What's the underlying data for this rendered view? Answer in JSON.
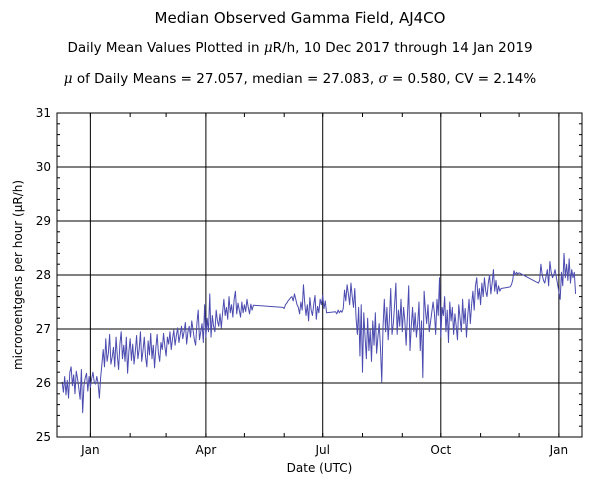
{
  "chart_data": {
    "type": "line",
    "title": "Median Observed Gamma Field, AJ4CO",
    "subtitle": {
      "pre": "Daily Mean Values Plotted in ",
      "mu": "μ",
      "post": "R/h, 10 Dec 2017 through 14 Jan 2019"
    },
    "stats": {
      "mu": "μ",
      "mean_text": " of Daily Means = 27.057,   median = 27.083,   ",
      "sigma": "σ",
      "sd_text": " = 0.580,   CV = 2.14%"
    },
    "xlabel": "Date (UTC)",
    "ylabel": "microroentgens per hour (μR/h)",
    "ylim": [
      25,
      31
    ],
    "xlim": [
      "2017-12-06",
      "2019-01-19"
    ],
    "yticks": [
      25,
      26,
      27,
      28,
      29,
      30,
      31
    ],
    "xticks": [
      {
        "date": "2018-01-01",
        "label": "Jan"
      },
      {
        "date": "2018-04-01",
        "label": "Apr"
      },
      {
        "date": "2018-07-01",
        "label": "Jul"
      },
      {
        "date": "2018-10-01",
        "label": "Oct"
      },
      {
        "date": "2019-01-01",
        "label": "Jan"
      }
    ],
    "grid": true,
    "line_color": "#4b4bb0",
    "segments": [
      {
        "start": "2017-12-10",
        "values": [
          26.02,
          25.83,
          26.12,
          25.78,
          26.05,
          25.72,
          26.2,
          26.3,
          25.95,
          26.15,
          25.8,
          26.22,
          26.08,
          25.9,
          25.7,
          26.25,
          25.45,
          25.95,
          26.1,
          26.18,
          25.85,
          26.12,
          25.92,
          26.08,
          26.2,
          26.02,
          25.98,
          26.12,
          26.0,
          25.72,
          26.1,
          26.35,
          26.62,
          26.3,
          26.82,
          26.4,
          26.55,
          26.9,
          26.35,
          26.48,
          26.66,
          26.3,
          26.85,
          26.5,
          26.25,
          26.72,
          26.95,
          26.45,
          26.7,
          26.4,
          26.85,
          26.18,
          26.58,
          26.82,
          26.42,
          26.72,
          26.35,
          26.58,
          26.88,
          26.45,
          26.62,
          26.95,
          26.4,
          26.6,
          26.85,
          26.48,
          26.3,
          26.78,
          26.52,
          26.92,
          26.45,
          26.7,
          26.28,
          26.65,
          26.9,
          26.55,
          26.4,
          26.75,
          26.62,
          26.92,
          26.68,
          26.5,
          26.85,
          26.72,
          26.95,
          26.62,
          26.82,
          26.98,
          26.7,
          26.88,
          27.02,
          26.75,
          26.9,
          27.05,
          26.82,
          26.95,
          27.12,
          26.72,
          26.95,
          27.05,
          26.85,
          27.15,
          26.98,
          26.8,
          26.7,
          27.1,
          27.35,
          26.8,
          26.95,
          27.1,
          26.75,
          27.45,
          26.85,
          27.2,
          26.95,
          27.65,
          26.85,
          27.25,
          27.05,
          26.95,
          27.35,
          27.15,
          27.05,
          27.28,
          27.02,
          27.3,
          27.55,
          27.25,
          27.4,
          27.18,
          27.6,
          27.3,
          27.45,
          27.22,
          27.55,
          27.7,
          27.28,
          27.48,
          27.35,
          27.22,
          27.5,
          27.3,
          27.45,
          27.32,
          27.55,
          27.4,
          27.28,
          27.46,
          27.35,
          27.44
        ]
      },
      {
        "start": "2018-05-31",
        "values": [
          27.4,
          27.38,
          27.45,
          27.48,
          27.52,
          27.55,
          27.58,
          27.6,
          27.52,
          27.65,
          27.55,
          27.45,
          27.4,
          27.28,
          27.5,
          27.35,
          27.82,
          27.48,
          27.25,
          27.45,
          27.15,
          27.58,
          27.35,
          27.25,
          27.45,
          27.62,
          27.18,
          27.42,
          27.3,
          27.55,
          27.45,
          27.62,
          27.38,
          27.52,
          27.3
        ]
      },
      {
        "start": "2018-07-11",
        "values": [
          27.32,
          27.28,
          27.35,
          27.3,
          27.34,
          27.31,
          27.38,
          27.72,
          27.52,
          27.82,
          27.65,
          27.45,
          27.85,
          27.6,
          27.4,
          27.75,
          27.2,
          26.9,
          27.4,
          26.5,
          27.45,
          26.2,
          27.3,
          26.85,
          26.45,
          27.2,
          26.6,
          26.98,
          26.4,
          27.15,
          26.7,
          27.3,
          26.55,
          26.85,
          27.1,
          26.65,
          26.02,
          27.05,
          27.55,
          26.95,
          27.4,
          26.8,
          27.2,
          27.75,
          26.9,
          27.1,
          27.45,
          27.85,
          26.9,
          27.35,
          27.05,
          27.55,
          26.95,
          27.4,
          27.15,
          26.7,
          27.25,
          27.8,
          26.6,
          27.05,
          27.4,
          26.95,
          27.3,
          26.85,
          27.1,
          27.5,
          26.6,
          27.15,
          26.1,
          27.7,
          27.35,
          27.1,
          27.45,
          26.95
        ]
      },
      {
        "start": "2018-09-25",
        "values": [
          27.5,
          27.3,
          26.9,
          27.55,
          27.25,
          27.95,
          26.85,
          27.4,
          27.25,
          27.6,
          26.95,
          27.35,
          26.75,
          27.5,
          27.15,
          27.4,
          26.9,
          27.28,
          27.05,
          26.8,
          27.45,
          27.2,
          26.95,
          27.55,
          27.1,
          27.38,
          26.85,
          27.25,
          27.55,
          27.1,
          27.45,
          27.7,
          27.35,
          27.8,
          27.95,
          27.55,
          27.75,
          27.45,
          27.85,
          27.6,
          27.95,
          27.7,
          27.6,
          27.85,
          28.0,
          27.65,
          27.85,
          28.1,
          27.7,
          27.9,
          27.65,
          27.8,
          27.7,
          27.75
        ]
      },
      {
        "start": "2018-11-24",
        "values": [
          27.78,
          27.82,
          27.9,
          28.08,
          28.0,
          28.05,
          28.02,
          28.04
        ]
      },
      {
        "start": "2018-12-16",
        "values": [
          27.85,
          27.9,
          28.2,
          28.0,
          27.9,
          27.85
        ]
      },
      {
        "start": "2018-12-23",
        "values": [
          28.1,
          27.8,
          28.25,
          28.05,
          27.95,
          28.0,
          28.1
        ]
      },
      {
        "start": "2019-01-02",
        "values": [
          27.55,
          28.05,
          27.8,
          28.4,
          27.95,
          28.2,
          27.9,
          28.3,
          27.85,
          28.1,
          27.95,
          28.05,
          27.65
        ]
      }
    ]
  }
}
